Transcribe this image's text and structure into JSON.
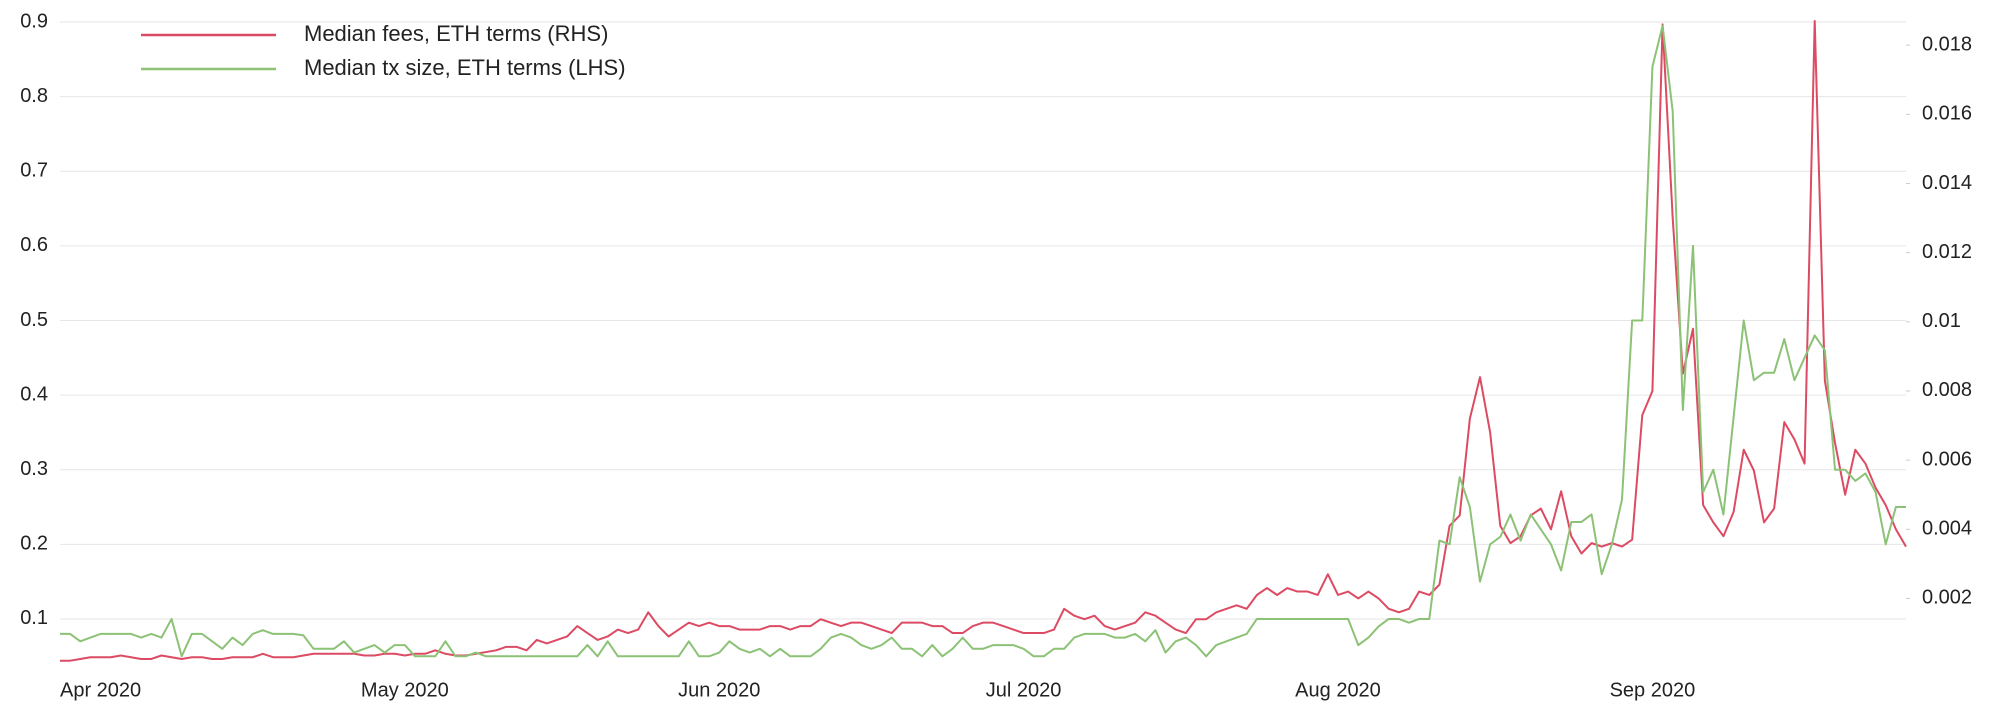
{
  "chart_data": {
    "type": "line",
    "categories": [
      null,
      null,
      null,
      null,
      "Apr 2020",
      null,
      null,
      null,
      null,
      null,
      null,
      null,
      null,
      null,
      null,
      null,
      null,
      null,
      null,
      null,
      null,
      null,
      null,
      null,
      null,
      null,
      null,
      null,
      null,
      null,
      null,
      null,
      null,
      null,
      "May 2020",
      null,
      null,
      null,
      null,
      null,
      null,
      null,
      null,
      null,
      null,
      null,
      null,
      null,
      null,
      null,
      null,
      null,
      null,
      null,
      null,
      null,
      null,
      null,
      null,
      null,
      null,
      null,
      null,
      null,
      null,
      "Jun 2020",
      null,
      null,
      null,
      null,
      null,
      null,
      null,
      null,
      null,
      null,
      null,
      null,
      null,
      null,
      null,
      null,
      null,
      null,
      null,
      null,
      null,
      null,
      null,
      null,
      null,
      null,
      null,
      null,
      null,
      "Jul 2020",
      null,
      null,
      null,
      null,
      null,
      null,
      null,
      null,
      null,
      null,
      null,
      null,
      null,
      null,
      null,
      null,
      null,
      null,
      null,
      null,
      null,
      null,
      null,
      null,
      null,
      null,
      null,
      null,
      null,
      null,
      "Aug 2020",
      null,
      null,
      null,
      null,
      null,
      null,
      null,
      null,
      null,
      null,
      null,
      null,
      null,
      null,
      null,
      null,
      null,
      null,
      null,
      null,
      null,
      null,
      null,
      null,
      null,
      null,
      null,
      null,
      null,
      null,
      "Sep 2020",
      null,
      null,
      null,
      null,
      null,
      null,
      null,
      null,
      null,
      null,
      null,
      null,
      null,
      null,
      null,
      null,
      null,
      null,
      null,
      null,
      null,
      null,
      null,
      null,
      null
    ],
    "series": [
      {
        "name": "Median fees, ETH terms (RHS)",
        "color": "#dc4b63",
        "axis": "y2",
        "values": [
          0.0002,
          0.0002,
          0.00025,
          0.0003,
          0.0003,
          0.0003,
          0.00035,
          0.0003,
          0.00025,
          0.00025,
          0.00035,
          0.0003,
          0.00025,
          0.0003,
          0.0003,
          0.00025,
          0.00025,
          0.0003,
          0.0003,
          0.0003,
          0.0004,
          0.0003,
          0.0003,
          0.0003,
          0.00035,
          0.0004,
          0.0004,
          0.0004,
          0.0004,
          0.0004,
          0.00035,
          0.00035,
          0.0004,
          0.0004,
          0.00035,
          0.0004,
          0.0004,
          0.0005,
          0.0004,
          0.00035,
          0.00035,
          0.0004,
          0.00045,
          0.0005,
          0.0006,
          0.0006,
          0.0005,
          0.0008,
          0.0007,
          0.0008,
          0.0009,
          0.0012,
          0.001,
          0.0008,
          0.0009,
          0.0011,
          0.001,
          0.0011,
          0.0016,
          0.0012,
          0.0009,
          0.0011,
          0.0013,
          0.0012,
          0.0013,
          0.0012,
          0.0012,
          0.0011,
          0.0011,
          0.0011,
          0.0012,
          0.0012,
          0.0011,
          0.0012,
          0.0012,
          0.0014,
          0.0013,
          0.0012,
          0.0013,
          0.0013,
          0.0012,
          0.0011,
          0.001,
          0.0013,
          0.0013,
          0.0013,
          0.0012,
          0.0012,
          0.001,
          0.001,
          0.0012,
          0.0013,
          0.0013,
          0.0012,
          0.0011,
          0.001,
          0.001,
          0.001,
          0.0011,
          0.0017,
          0.0015,
          0.0014,
          0.0015,
          0.0012,
          0.0011,
          0.0012,
          0.0013,
          0.0016,
          0.0015,
          0.0013,
          0.0011,
          0.001,
          0.0014,
          0.0014,
          0.0016,
          0.0017,
          0.0018,
          0.0017,
          0.0021,
          0.0023,
          0.0021,
          0.0023,
          0.0022,
          0.0022,
          0.0021,
          0.0027,
          0.0021,
          0.0022,
          0.002,
          0.0022,
          0.002,
          0.0017,
          0.0016,
          0.0017,
          0.0022,
          0.0021,
          0.0024,
          0.0041,
          0.0044,
          0.0072,
          0.0084,
          0.0068,
          0.0041,
          0.0036,
          0.0038,
          0.0044,
          0.0046,
          0.004,
          0.0051,
          0.0038,
          0.0033,
          0.0036,
          0.0035,
          0.0036,
          0.0035,
          0.0037,
          0.0073,
          0.008,
          0.0186,
          0.013,
          0.0085,
          0.0098,
          0.0047,
          0.0042,
          0.0038,
          0.0045,
          0.0063,
          0.0057,
          0.0042,
          0.0046,
          0.0071,
          0.0066,
          0.0059,
          0.0187,
          0.0083,
          0.0065,
          0.005,
          0.0063,
          0.0059,
          0.0052,
          0.0047,
          0.004,
          0.0035
        ]
      },
      {
        "name": "Median tx size, ETH terms (LHS)",
        "color": "#8cc276",
        "axis": "y",
        "values": [
          0.08,
          0.08,
          0.07,
          0.075,
          0.08,
          0.08,
          0.08,
          0.08,
          0.075,
          0.08,
          0.075,
          0.1,
          0.05,
          0.08,
          0.08,
          0.07,
          0.06,
          0.075,
          0.065,
          0.08,
          0.085,
          0.08,
          0.08,
          0.08,
          0.078,
          0.06,
          0.06,
          0.06,
          0.07,
          0.055,
          0.06,
          0.065,
          0.055,
          0.065,
          0.065,
          0.05,
          0.05,
          0.05,
          0.07,
          0.05,
          0.05,
          0.055,
          0.05,
          0.05,
          0.05,
          0.05,
          0.05,
          0.05,
          0.05,
          0.05,
          0.05,
          0.05,
          0.065,
          0.05,
          0.07,
          0.05,
          0.05,
          0.05,
          0.05,
          0.05,
          0.05,
          0.05,
          0.07,
          0.05,
          0.05,
          0.055,
          0.07,
          0.06,
          0.055,
          0.06,
          0.05,
          0.06,
          0.05,
          0.05,
          0.05,
          0.06,
          0.075,
          0.08,
          0.075,
          0.065,
          0.06,
          0.065,
          0.075,
          0.06,
          0.06,
          0.05,
          0.065,
          0.05,
          0.06,
          0.075,
          0.06,
          0.06,
          0.065,
          0.065,
          0.065,
          0.06,
          0.05,
          0.05,
          0.06,
          0.06,
          0.075,
          0.08,
          0.08,
          0.08,
          0.075,
          0.075,
          0.08,
          0.07,
          0.085,
          0.055,
          0.07,
          0.075,
          0.065,
          0.05,
          0.065,
          0.07,
          0.075,
          0.08,
          0.1,
          0.1,
          0.1,
          0.1,
          0.1,
          0.1,
          0.1,
          0.1,
          0.1,
          0.1,
          0.065,
          0.075,
          0.09,
          0.1,
          0.1,
          0.095,
          0.1,
          0.1,
          0.205,
          0.2,
          0.29,
          0.25,
          0.15,
          0.2,
          0.21,
          0.24,
          0.205,
          0.24,
          0.22,
          0.2,
          0.165,
          0.23,
          0.23,
          0.24,
          0.16,
          0.2,
          0.26,
          0.5,
          0.5,
          0.84,
          0.895,
          0.78,
          0.38,
          0.6,
          0.27,
          0.3,
          0.24,
          0.37,
          0.5,
          0.42,
          0.43,
          0.43,
          0.475,
          0.42,
          0.45,
          0.48,
          0.46,
          0.3,
          0.3,
          0.285,
          0.295,
          0.27,
          0.2,
          0.25,
          0.25
        ]
      }
    ],
    "ylim": [
      0.045,
      0.9
    ],
    "yticks": [
      0.1,
      0.2,
      0.3,
      0.4,
      0.5,
      0.6,
      0.7,
      0.8,
      0.9
    ],
    "y2lim": [
      0.00022,
      0.01867
    ],
    "y2ticks": [
      0.002,
      0.004,
      0.006,
      0.008,
      0.01,
      0.012,
      0.014,
      0.016,
      0.018
    ],
    "grid": true,
    "legend": "top-left"
  }
}
